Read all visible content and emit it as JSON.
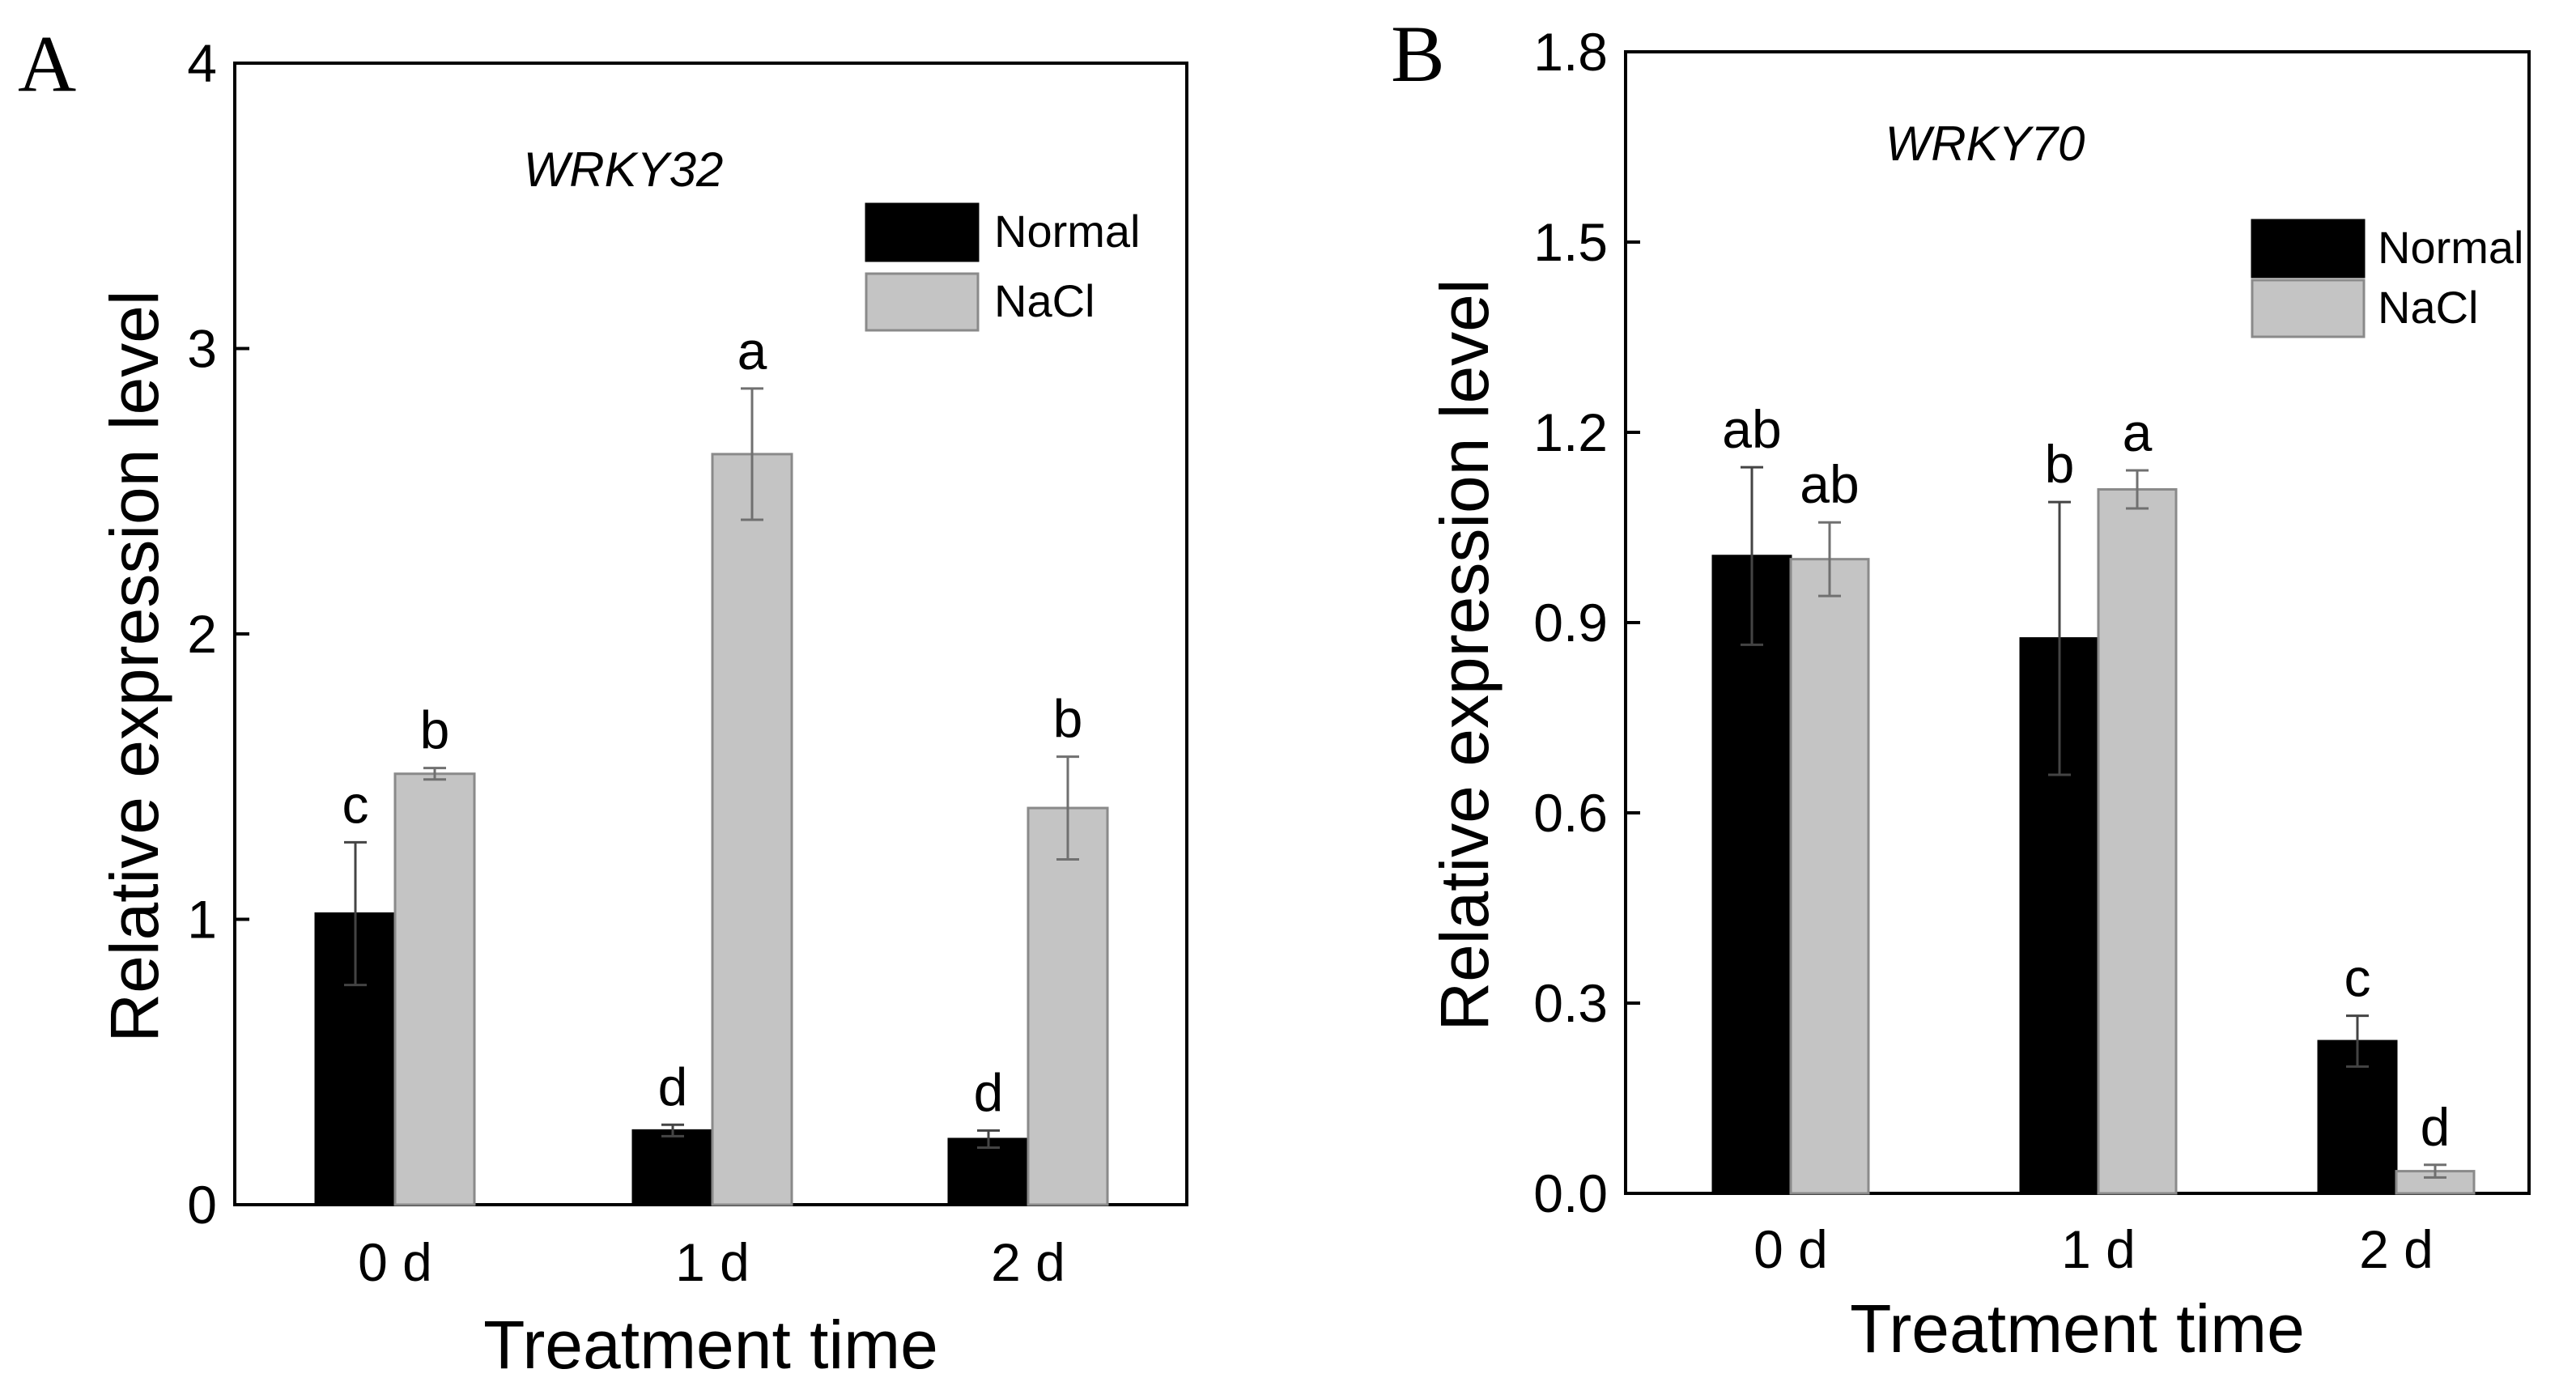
{
  "colors": {
    "normal": "#000000",
    "nacl": "#c4c4c4",
    "nacl_edge": "#8a8a8a",
    "axis": "#000000"
  },
  "chart_data": [
    {
      "panel": "A",
      "type": "bar",
      "title": "WRKY32",
      "xlabel": "Treatment time",
      "ylabel": "Relative expression level",
      "categories": [
        "0 d",
        "1 d",
        "2 d"
      ],
      "ylim": [
        0,
        4
      ],
      "yticks": [
        0,
        1,
        2,
        3,
        4
      ],
      "ytick_labels": [
        "0",
        "1",
        "2",
        "3",
        "4"
      ],
      "legend": [
        "Normal",
        "NaCl"
      ],
      "legend_position": "top-right",
      "series": [
        {
          "name": "Normal",
          "values": [
            1.02,
            0.26,
            0.23
          ],
          "errors": [
            0.25,
            0.02,
            0.03
          ],
          "sig": [
            "c",
            "d",
            "d"
          ]
        },
        {
          "name": "NaCl",
          "values": [
            1.51,
            2.63,
            1.39
          ],
          "errors": [
            0.02,
            0.23,
            0.18
          ],
          "sig": [
            "b",
            "a",
            "b"
          ]
        }
      ]
    },
    {
      "panel": "B",
      "type": "bar",
      "title": "WRKY70",
      "xlabel": "Treatment time",
      "ylabel": "Relative expression level",
      "categories": [
        "0 d",
        "1 d",
        "2 d"
      ],
      "ylim": [
        0,
        1.8
      ],
      "yticks": [
        0,
        0.3,
        0.6,
        0.9,
        1.2,
        1.5,
        1.8
      ],
      "ytick_labels": [
        "0.0",
        "0.3",
        "0.6",
        "0.9",
        "1.2",
        "1.5",
        "1.8"
      ],
      "legend": [
        "Normal",
        "NaCl"
      ],
      "legend_position": "top-right",
      "series": [
        {
          "name": "Normal",
          "values": [
            1.005,
            0.875,
            0.24
          ],
          "errors": [
            0.14,
            0.215,
            0.04
          ],
          "sig": [
            "ab",
            "b",
            "c"
          ]
        },
        {
          "name": "NaCl",
          "values": [
            1.0,
            1.11,
            0.035
          ],
          "errors": [
            0.058,
            0.03,
            0.01
          ],
          "sig": [
            "ab",
            "a",
            "d"
          ]
        }
      ]
    }
  ]
}
